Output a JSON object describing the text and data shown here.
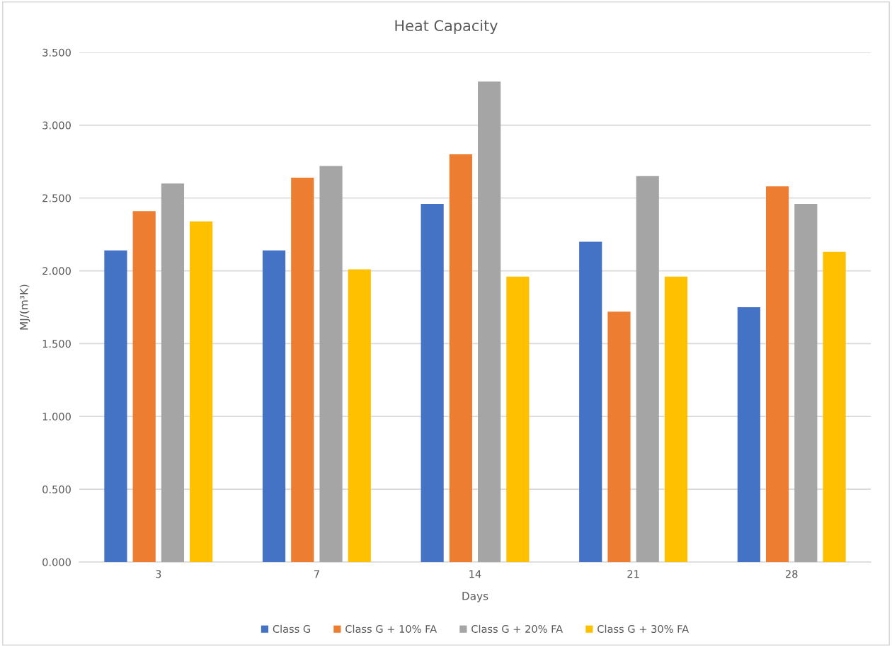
{
  "chart_data": {
    "type": "bar",
    "title": "Heat Capacity",
    "xlabel": "Days",
    "ylabel": "MJ/(m³K)",
    "categories": [
      "3",
      "7",
      "14",
      "21",
      "28"
    ],
    "series": [
      {
        "name": "Class G",
        "color": "#4472c4",
        "values": [
          2.14,
          2.14,
          2.46,
          2.2,
          1.75
        ]
      },
      {
        "name": "Class G + 10% FA",
        "color": "#ed7d31",
        "values": [
          2.41,
          2.64,
          2.8,
          1.72,
          2.58
        ]
      },
      {
        "name": "Class G + 20% FA",
        "color": "#a5a5a5",
        "values": [
          2.6,
          2.72,
          3.3,
          2.65,
          2.46
        ]
      },
      {
        "name": "Class G + 30% FA",
        "color": "#ffc000",
        "values": [
          2.34,
          2.01,
          1.96,
          1.96,
          2.13
        ]
      }
    ],
    "ylim": [
      0,
      3.5
    ],
    "yticks": [
      {
        "value": 0,
        "label": "0.000"
      },
      {
        "value": 0.5,
        "label": "0.500"
      },
      {
        "value": 1,
        "label": "1.000"
      },
      {
        "value": 1.5,
        "label": "1.500"
      },
      {
        "value": 2,
        "label": "2.000"
      },
      {
        "value": 2.5,
        "label": "2.500"
      },
      {
        "value": 3,
        "label": "3.000"
      },
      {
        "value": 3.5,
        "label": "3.500"
      }
    ],
    "grid": "y",
    "legend": "bottom"
  }
}
